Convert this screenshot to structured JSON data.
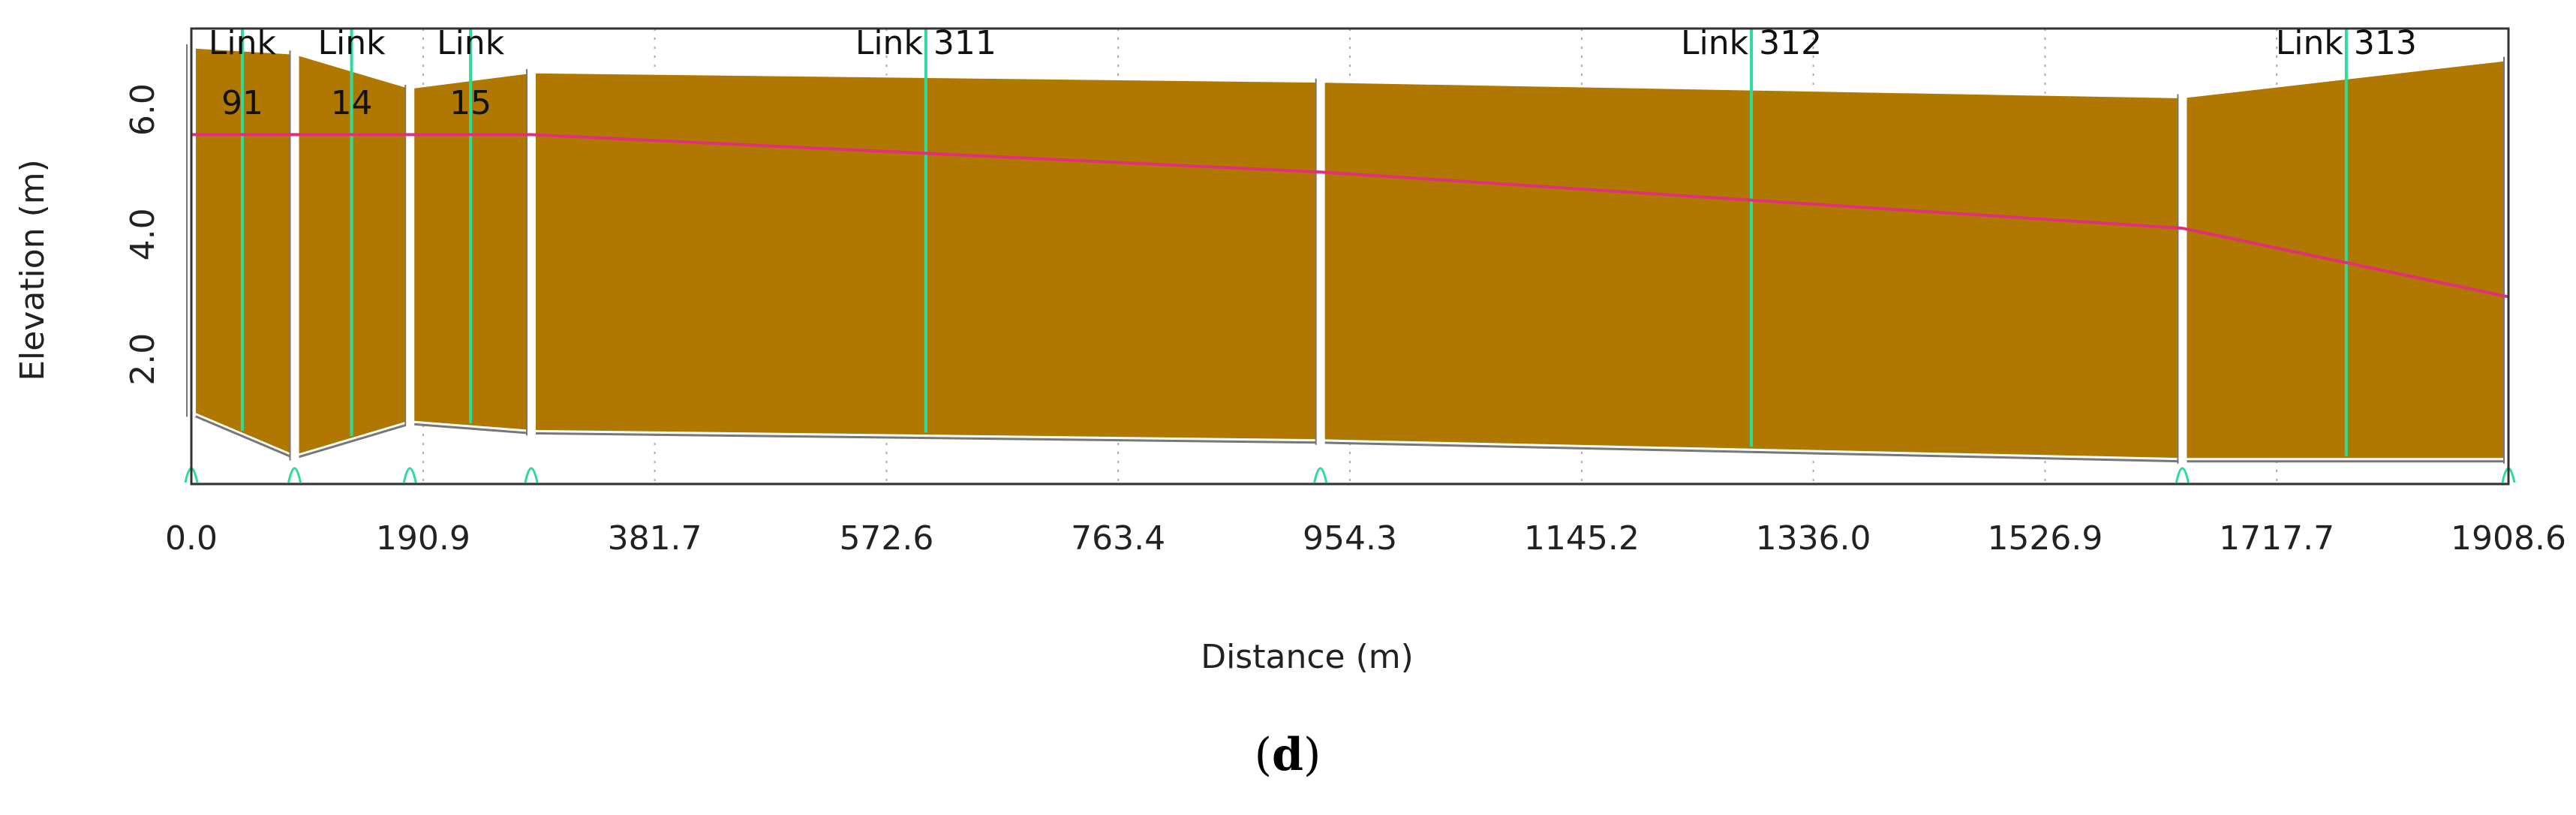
{
  "chart_data": {
    "type": "area",
    "title": "",
    "xlabel": "Distance (m)",
    "ylabel": "Elevation (m)",
    "xlim": [
      0,
      1908.6
    ],
    "ylim": [
      0,
      7.3
    ],
    "x_ticks": [
      "0.0",
      "190.9",
      "381.7",
      "572.6",
      "763.4",
      "954.3",
      "1145.2",
      "1336.0",
      "1526.9",
      "1717.7",
      "1908.6"
    ],
    "y_ticks": [
      "2.0",
      "4.0",
      "6.0"
    ],
    "grid": true,
    "nodes": [
      {
        "x": 0.0,
        "invert": 1.15,
        "ground": 7.0
      },
      {
        "x": 85.0,
        "invert": 0.45,
        "ground": 6.9
      },
      {
        "x": 180.0,
        "invert": 1.0,
        "ground": 6.35
      },
      {
        "x": 280.0,
        "invert": 0.85,
        "ground": 6.6
      },
      {
        "x": 930.0,
        "invert": 0.7,
        "ground": 6.45
      },
      {
        "x": 1640.0,
        "invert": 0.4,
        "ground": 6.2
      },
      {
        "x": 1908.6,
        "invert": 0.4,
        "ground": 6.8
      }
    ],
    "water_level": [
      {
        "x": 0.0,
        "y": 5.6
      },
      {
        "x": 280.0,
        "y": 5.6
      },
      {
        "x": 930.0,
        "y": 5.0
      },
      {
        "x": 1640.0,
        "y": 4.1
      },
      {
        "x": 1908.6,
        "y": 3.0
      }
    ],
    "links": [
      {
        "label_line1": "Link",
        "label_line2": "91",
        "x_mid": 42.0
      },
      {
        "label_line1": "Link",
        "label_line2": "14",
        "x_mid": 132.0
      },
      {
        "label_line1": "Link",
        "label_line2": "15",
        "x_mid": 230.0
      },
      {
        "label_line1": "Link 311",
        "label_line2": "",
        "x_mid": 605.0
      },
      {
        "label_line1": "Link 312",
        "label_line2": "",
        "x_mid": 1285.0
      },
      {
        "label_line1": "Link 313",
        "label_line2": "",
        "x_mid": 1775.0
      }
    ],
    "colors": {
      "conduit_fill": "#b07800",
      "water_line": "#e0307a",
      "link_marker": "#2ddc9a",
      "node_wall": "#ffffff",
      "node_outline": "#777777",
      "grid": "#aaaaaa",
      "frame": "#333333"
    }
  },
  "caption": {
    "open": "(",
    "letter": "d",
    "close": ")"
  }
}
